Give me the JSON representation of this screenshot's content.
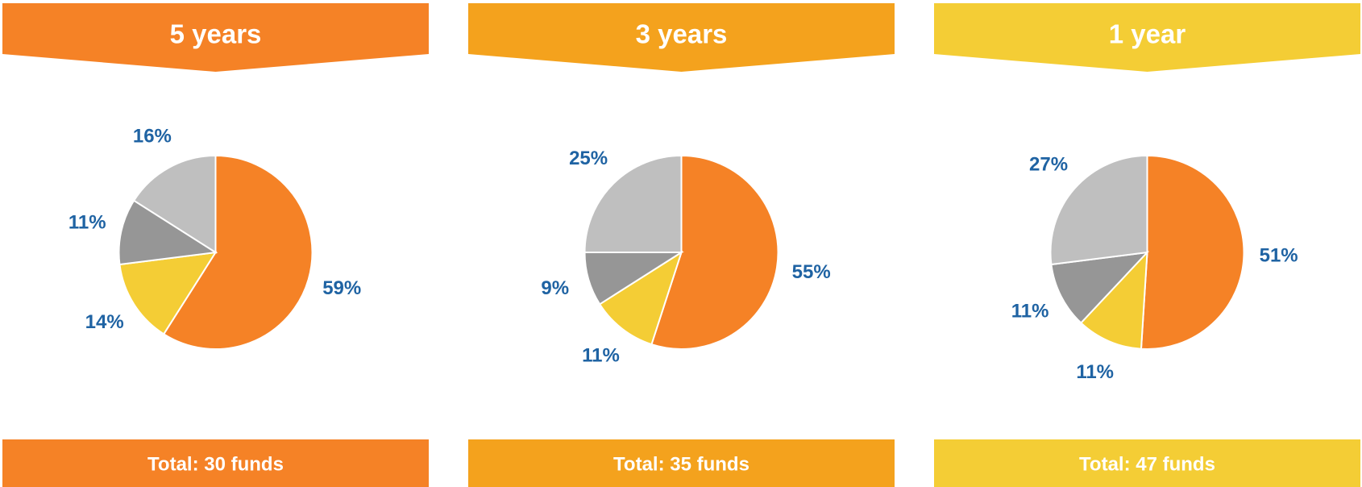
{
  "chart_data": [
    {
      "type": "pie",
      "title": "5 years",
      "footer": "Total: 30 funds",
      "header_color": "#f58226",
      "values": [
        59,
        14,
        11,
        16
      ],
      "value_labels": [
        "59%",
        "14%",
        "11%",
        "16%"
      ],
      "colors": [
        "#f58226",
        "#f4cd35",
        "#969696",
        "#bfbfbf"
      ]
    },
    {
      "type": "pie",
      "title": "3 years",
      "footer": "Total: 35 funds",
      "header_color": "#f4a21d",
      "values": [
        55,
        11,
        9,
        25
      ],
      "value_labels": [
        "55%",
        "11%",
        "9%",
        "25%"
      ],
      "colors": [
        "#f58226",
        "#f4cd35",
        "#969696",
        "#bfbfbf"
      ]
    },
    {
      "type": "pie",
      "title": "1 year",
      "footer": "Total: 47 funds",
      "header_color": "#f4cd35",
      "values": [
        51,
        11,
        11,
        27
      ],
      "value_labels": [
        "51%",
        "11%",
        "11%",
        "27%"
      ],
      "colors": [
        "#f58226",
        "#f4cd35",
        "#969696",
        "#bfbfbf"
      ]
    }
  ]
}
